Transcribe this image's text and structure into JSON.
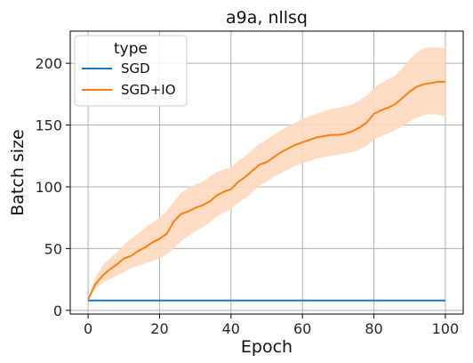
{
  "chart_data": {
    "type": "line",
    "title": "a9a, nllsq",
    "xlabel": "Epoch",
    "ylabel": "Batch size",
    "xlim": [
      -5,
      105
    ],
    "ylim": [
      -3,
      226
    ],
    "xticks": [
      0,
      20,
      40,
      60,
      80,
      100
    ],
    "yticks": [
      0,
      50,
      100,
      150,
      200
    ],
    "grid": true,
    "legend": {
      "title": "type",
      "placement": "top-left"
    },
    "series": [
      {
        "name": "SGD",
        "color": "#1f77b4",
        "x": [
          0,
          100
        ],
        "y": [
          8,
          8
        ]
      },
      {
        "name": "SGD+IO",
        "color": "#ff7f0e",
        "band_color": "#ffd9bf",
        "x": [
          0,
          2,
          4,
          6,
          8,
          10,
          12,
          14,
          16,
          18,
          20,
          22,
          24,
          26,
          28,
          30,
          32,
          34,
          36,
          38,
          40,
          42,
          44,
          46,
          48,
          50,
          52,
          54,
          56,
          58,
          60,
          62,
          64,
          66,
          68,
          70,
          72,
          74,
          76,
          78,
          80,
          82,
          84,
          86,
          88,
          90,
          92,
          94,
          96,
          98,
          100
        ],
        "y": [
          9,
          21,
          28,
          33,
          37,
          42,
          44,
          48,
          51,
          55,
          58,
          62,
          72,
          78,
          80,
          83,
          85,
          88,
          93,
          96,
          98,
          104,
          108,
          113,
          118,
          120,
          124,
          128,
          131,
          134,
          136,
          138,
          140,
          141,
          142,
          142,
          143,
          145,
          148,
          152,
          159,
          162,
          164,
          167,
          172,
          177,
          181,
          183,
          184,
          185,
          185
        ],
        "band_upper": [
          9,
          26,
          36,
          42,
          47,
          53,
          58,
          62,
          67,
          71,
          75,
          80,
          88,
          95,
          99,
          102,
          104,
          108,
          112,
          114,
          116,
          121,
          125,
          130,
          135,
          138,
          142,
          146,
          149,
          152,
          155,
          157,
          159,
          161,
          163,
          164,
          165,
          167,
          170,
          174,
          180,
          184,
          187,
          190,
          196,
          203,
          209,
          212,
          213,
          213,
          212
        ],
        "band_lower": [
          9,
          17,
          22,
          25,
          28,
          31,
          34,
          36,
          38,
          40,
          42,
          45,
          50,
          56,
          60,
          64,
          67,
          71,
          76,
          79,
          82,
          87,
          91,
          96,
          101,
          104,
          108,
          111,
          114,
          117,
          119,
          121,
          123,
          124,
          125,
          126,
          127,
          128,
          130,
          133,
          138,
          141,
          143,
          146,
          149,
          153,
          156,
          158,
          159,
          158,
          157
        ]
      }
    ]
  }
}
